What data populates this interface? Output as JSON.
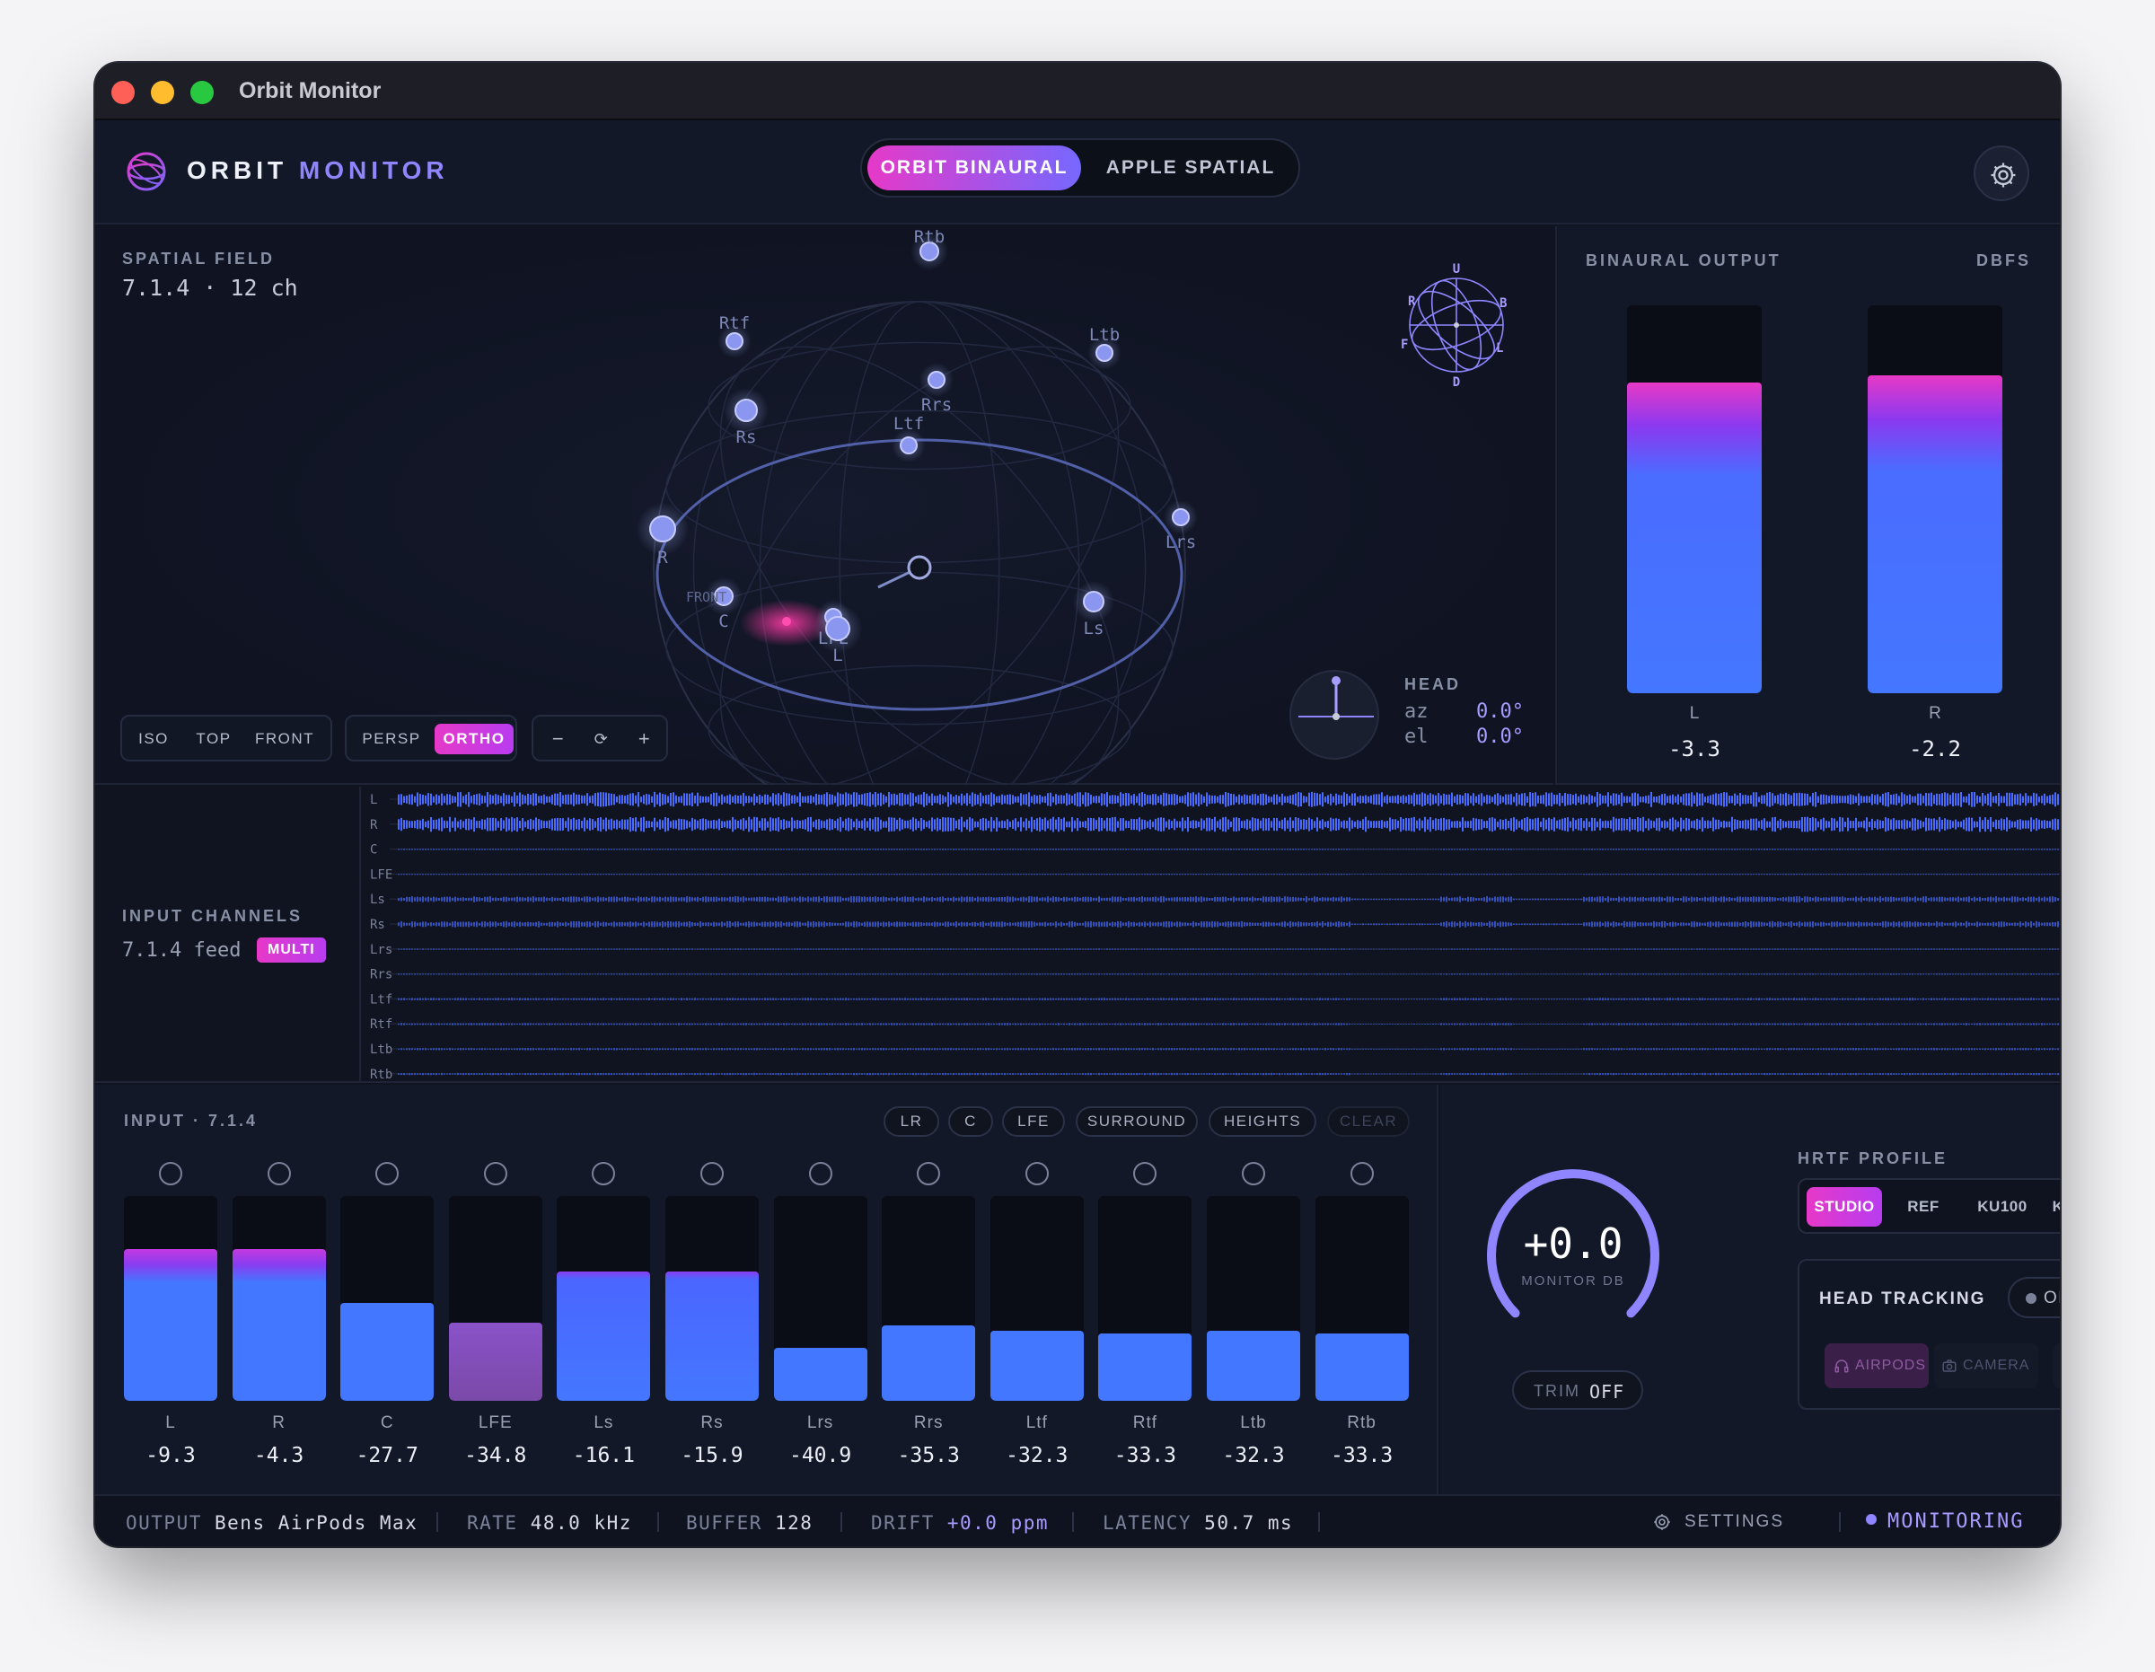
{
  "window": {
    "title": "Orbit Monitor"
  },
  "header": {
    "brand_a": "ORBIT",
    "brand_b": "MONITOR",
    "modes": [
      "ORBIT BINAURAL",
      "APPLE SPATIAL"
    ],
    "active_mode": "ORBIT BINAURAL",
    "settings_icon": "gear-icon"
  },
  "spatial": {
    "label": "SPATIAL FIELD",
    "format": "7.1.4 · 12 ch",
    "speakers": [
      {
        "name": "Rtb"
      },
      {
        "name": "Rtf"
      },
      {
        "name": "Ltb"
      },
      {
        "name": "Rs"
      },
      {
        "name": "Rrs"
      },
      {
        "name": "Ltf"
      },
      {
        "name": "R"
      },
      {
        "name": "Lrs"
      },
      {
        "name": "C"
      },
      {
        "name": "LFE"
      },
      {
        "name": "L"
      },
      {
        "name": "Ls"
      }
    ],
    "front_label": "FRONT",
    "view_buttons": [
      "ISO",
      "TOP",
      "FRONT"
    ],
    "proj_buttons": [
      "PERSP",
      "ORTHO"
    ],
    "active_proj": "ORTHO",
    "zoom_buttons": [
      "−",
      "⟳",
      "+"
    ],
    "cube_labels": {
      "up": "U",
      "down": "D",
      "right": "R",
      "left": "L",
      "front": "F",
      "back": "B"
    },
    "head": {
      "label": "HEAD",
      "az_key": "az",
      "az": "0.0°",
      "el_key": "el",
      "el": "0.0°"
    }
  },
  "binaural": {
    "label": "BINAURAL OUTPUT",
    "unit": "DBFS",
    "channels": [
      {
        "name": "L",
        "value": "-3.3",
        "level": 0.8
      },
      {
        "name": "R",
        "value": "-2.2",
        "level": 0.82
      }
    ]
  },
  "input_channels": {
    "label": "INPUT CHANNELS",
    "feed": "7.1.4 feed",
    "badge": "MULTI",
    "tracks": [
      {
        "name": "L",
        "activity": 0.9
      },
      {
        "name": "R",
        "activity": 0.9
      },
      {
        "name": "C",
        "activity": 0.05
      },
      {
        "name": "LFE",
        "activity": 0.03
      },
      {
        "name": "Ls",
        "activity": 0.35
      },
      {
        "name": "Rs",
        "activity": 0.35
      },
      {
        "name": "Lrs",
        "activity": 0.04
      },
      {
        "name": "Rrs",
        "activity": 0.04
      },
      {
        "name": "Ltf",
        "activity": 0.12
      },
      {
        "name": "Rtf",
        "activity": 0.1
      },
      {
        "name": "Ltb",
        "activity": 0.1
      },
      {
        "name": "Rtb",
        "activity": 0.1
      }
    ]
  },
  "mixer": {
    "label": "INPUT · 7.1.4",
    "groups": [
      "LR",
      "C",
      "LFE",
      "SURROUND",
      "HEIGHTS",
      "CLEAR"
    ],
    "channels": [
      {
        "name": "L",
        "value": "-9.3",
        "level": 0.74,
        "style": "hot"
      },
      {
        "name": "R",
        "value": "-4.3",
        "level": 0.74,
        "style": "hot"
      },
      {
        "name": "C",
        "value": "-27.7",
        "level": 0.48,
        "style": "blue"
      },
      {
        "name": "LFE",
        "value": "-34.8",
        "level": 0.38,
        "style": "lfe"
      },
      {
        "name": "Ls",
        "value": "-16.1",
        "level": 0.63,
        "style": "warm"
      },
      {
        "name": "Rs",
        "value": "-15.9",
        "level": 0.63,
        "style": "warm"
      },
      {
        "name": "Lrs",
        "value": "-40.9",
        "level": 0.26,
        "style": "blue"
      },
      {
        "name": "Rrs",
        "value": "-35.3",
        "level": 0.37,
        "style": "blue"
      },
      {
        "name": "Ltf",
        "value": "-32.3",
        "level": 0.34,
        "style": "blue"
      },
      {
        "name": "Rtf",
        "value": "-33.3",
        "level": 0.33,
        "style": "blue"
      },
      {
        "name": "Ltb",
        "value": "-32.3",
        "level": 0.34,
        "style": "blue"
      },
      {
        "name": "Rtb",
        "value": "-33.3",
        "level": 0.33,
        "style": "blue"
      }
    ]
  },
  "monitor": {
    "value": "+0.0",
    "caption": "MONITOR DB",
    "trim_key": "TRIM",
    "trim_value": "OFF"
  },
  "hrtf": {
    "label": "HRTF PROFILE",
    "profiles": [
      "STUDIO",
      "REF",
      "KU100",
      "KEMAR"
    ],
    "active": "STUDIO"
  },
  "head_tracking": {
    "label": "HEAD TRACKING",
    "state": "OFF",
    "sources": [
      "AIRPODS",
      "CAMERA"
    ],
    "reset_icon": "↺"
  },
  "status": {
    "output_key": "OUTPUT",
    "output": "Bens AirPods Max",
    "rate_key": "RATE",
    "rate": "48.0 kHz",
    "buffer_key": "BUFFER",
    "buffer": "128",
    "drift_key": "DRIFT",
    "drift": "+0.0 ppm",
    "latency_key": "LATENCY",
    "latency": "50.7 ms",
    "settings": "SETTINGS",
    "monitoring": "MONITORING"
  },
  "colors": {
    "accent": "#8f86ff",
    "magenta": "#e639c8",
    "meter_blue": "#4477ff",
    "background": "#101421"
  }
}
